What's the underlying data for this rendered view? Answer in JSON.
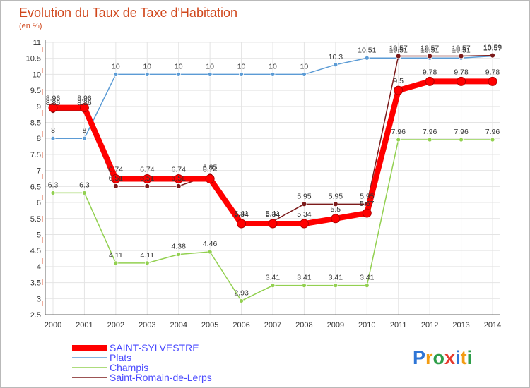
{
  "chart_data": {
    "type": "line",
    "title": "Evolution du Taux de Taxe d'Habitation",
    "subtitle": "(en %)",
    "xlabel": "",
    "ylabel": "",
    "x": [
      "2000",
      "2001",
      "2002",
      "2003",
      "2004",
      "2005",
      "2006",
      "2007",
      "2008",
      "2009",
      "2010",
      "2011",
      "2012",
      "2013",
      "2014"
    ],
    "ylim": [
      2.5,
      11
    ],
    "yticks": [
      "2.5",
      "3",
      "3.5",
      "4",
      "4.5",
      "5",
      "5.5",
      "6",
      "6.5",
      "7",
      "7.5",
      "8",
      "8.5",
      "9",
      "9.5",
      "10",
      "10.5",
      "11"
    ],
    "grid": true,
    "legend_placement": "bottom-left",
    "series": [
      {
        "name": "Plats",
        "color": "#5b9bd5",
        "values": [
          8,
          8,
          10,
          10,
          10,
          10,
          10,
          10,
          10,
          10.3,
          10.51,
          10.51,
          10.51,
          10.51,
          10.57
        ],
        "labels": [
          "8",
          "8",
          "10",
          "10",
          "10",
          "10",
          "10",
          "10",
          "10",
          "10.3",
          "10.51",
          "10.51",
          "10.51",
          "10.51",
          "10.57"
        ]
      },
      {
        "name": "Champis",
        "color": "#92d050",
        "values": [
          6.3,
          6.3,
          4.11,
          4.11,
          4.38,
          4.46,
          2.93,
          3.41,
          3.41,
          3.41,
          3.41,
          7.96,
          7.96,
          7.96,
          7.96
        ],
        "labels": [
          "6.3",
          "6.3",
          "4.11",
          "4.11",
          "4.38",
          "4.46",
          "2.93",
          "3.41",
          "3.41",
          "3.41",
          "3.41",
          "7.96",
          "7.96",
          "7.96",
          "7.96"
        ]
      },
      {
        "name": "Saint-Romain-de-Lerps",
        "color": "#7b1a1a",
        "values": [
          8.86,
          8.86,
          6.51,
          6.51,
          6.51,
          6.85,
          5.41,
          5.41,
          5.95,
          5.95,
          5.95,
          10.57,
          10.57,
          10.57,
          10.59
        ],
        "labels": [
          "8.86",
          "8.86",
          "6.51",
          "6.51",
          "6.51",
          "6.85",
          "5.41",
          "5.41",
          "5.95",
          "5.95",
          "5.95",
          "10.57",
          "10.57",
          "10.57",
          "10.59"
        ]
      },
      {
        "name": "SAINT-SYLVESTRE",
        "color": "#ff0000",
        "values": [
          8.96,
          8.96,
          6.74,
          6.74,
          6.74,
          6.74,
          5.34,
          5.34,
          5.34,
          5.5,
          5.67,
          9.5,
          9.78,
          9.78,
          9.78
        ],
        "labels": [
          "8.96",
          "8.96",
          "6.74",
          "6.74",
          "6.74",
          "6.74",
          "5.34",
          "5.34",
          "5.34",
          "5.5",
          "5.67",
          "9.5",
          "9.78",
          "9.78",
          "9.78"
        ]
      }
    ]
  },
  "legend": {
    "items": [
      {
        "label": "SAINT-SYLVESTRE",
        "color": "#ff0000"
      },
      {
        "label": "Plats",
        "color": "#5b9bd5"
      },
      {
        "label": "Champis",
        "color": "#92d050"
      },
      {
        "label": "Saint-Romain-de-Lerps",
        "color": "#7b1a1a"
      }
    ]
  },
  "logo": {
    "text": "Proxiti",
    "letters": [
      {
        "ch": "P",
        "color": "#2e75d6"
      },
      {
        "ch": "r",
        "color": "#f39c12"
      },
      {
        "ch": "o",
        "color": "#2e9e49"
      },
      {
        "ch": "x",
        "color": "#e63a2e"
      },
      {
        "ch": "i",
        "color": "#2e75d6"
      },
      {
        "ch": "t",
        "color": "#f39c12"
      },
      {
        "ch": "i",
        "color": "#2e9e49"
      }
    ]
  }
}
